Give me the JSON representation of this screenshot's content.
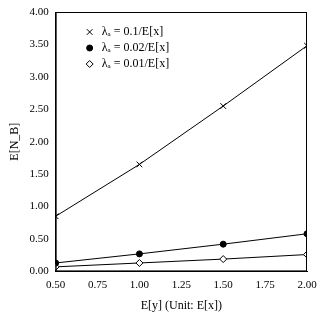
{
  "chart_data": {
    "type": "line",
    "x_label": "E[y] (Unit: E[x])",
    "y_label": "E[N_B]",
    "x": [
      0.5,
      1.0,
      1.5,
      2.0
    ],
    "series": [
      {
        "name": "λₐ = 0.1/E[x]",
        "color": "#000000",
        "marker": "x",
        "values": [
          0.85,
          1.65,
          2.55,
          3.48
        ]
      },
      {
        "name": "λₐ = 0.02/E[x]",
        "color": "#000000",
        "marker": "circle",
        "values": [
          0.13,
          0.27,
          0.42,
          0.58
        ]
      },
      {
        "name": "λₐ = 0.01/E[x]",
        "color": "#000000",
        "marker": "diamond",
        "values": [
          0.07,
          0.13,
          0.19,
          0.26
        ]
      }
    ],
    "xlim": [
      0.5,
      2.0
    ],
    "xticks": [
      {
        "value": 0.5,
        "label": "0.50"
      },
      {
        "value": 0.75,
        "label": "0.75"
      },
      {
        "value": 1.0,
        "label": "1.00"
      },
      {
        "value": 1.25,
        "label": "1.25"
      },
      {
        "value": 1.5,
        "label": "1.50"
      },
      {
        "value": 1.75,
        "label": "1.75"
      },
      {
        "value": 2.0,
        "label": "2.00"
      }
    ],
    "ylim": [
      0,
      4
    ],
    "yticks": [
      {
        "value": 0,
        "label": "0.00"
      },
      {
        "value": 0.5,
        "label": "0.50"
      },
      {
        "value": 1,
        "label": "1.00"
      },
      {
        "value": 1.5,
        "label": "1.50"
      },
      {
        "value": 2,
        "label": "2.00"
      },
      {
        "value": 2.5,
        "label": "2.50"
      },
      {
        "value": 3,
        "label": "3.00"
      },
      {
        "value": 3.5,
        "label": "3.50"
      },
      {
        "value": 4,
        "label": "4.00"
      }
    ],
    "grid": false,
    "legend": "upper left"
  }
}
